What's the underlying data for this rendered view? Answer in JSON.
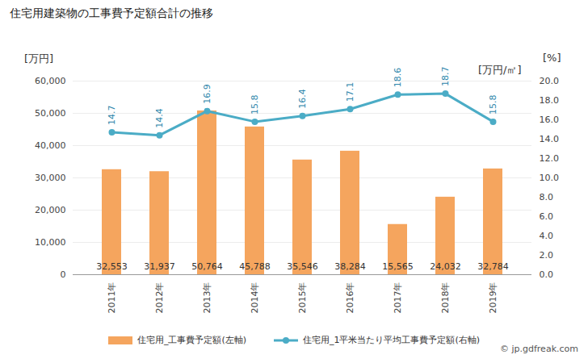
{
  "chart_data": {
    "type": "bar",
    "title": "住宅用建築物の工事費予定額合計の推移",
    "y_label": "[万円]",
    "y2_label": "[万円/㎡]",
    "annotations": [
      "[%]",
      "© jp.gdfreak.com"
    ],
    "categories": [
      "2011年",
      "2012年",
      "2013年",
      "2014年",
      "2015年",
      "2016年",
      "2017年",
      "2018年",
      "2019年"
    ],
    "series": [
      {
        "name": "住宅用_工事費予定額(左軸)",
        "type": "bar",
        "color": "#f5a55e",
        "values": [
          32553,
          31937,
          50764,
          45788,
          35546,
          38284,
          15565,
          24032,
          32784
        ],
        "value_labels": [
          "32,553",
          "31,937",
          "50,764",
          "45,788",
          "35,546",
          "38,284",
          "15,565",
          "24,032",
          "32,784"
        ],
        "data_labels": true
      },
      {
        "name": "住宅用_1平米当たり平均工事費予定額(右軸)",
        "type": "line",
        "axis": "y2",
        "color": "#4bacc6",
        "marker": "circle",
        "line_style": "solid",
        "values": [
          14.7,
          14.4,
          16.9,
          15.8,
          16.4,
          17.1,
          18.6,
          18.7,
          15.8
        ],
        "data_labels": true
      }
    ],
    "ylim": [
      0,
      60000
    ],
    "yticks": [
      0,
      {
        "value": 10000,
        "label": "10,000"
      },
      {
        "value": 20000,
        "label": "20,000"
      },
      {
        "value": 30000,
        "label": "30,000"
      },
      {
        "value": 40000,
        "label": "40,000"
      },
      {
        "value": 50000,
        "label": "50,000"
      },
      {
        "value": 60000,
        "label": "60,000"
      }
    ],
    "y2lim": [
      0,
      20
    ],
    "y2ticks": [
      {
        "value": 0,
        "label": "0.0"
      },
      {
        "value": 2,
        "label": "2.0"
      },
      {
        "value": 4,
        "label": "4.0"
      },
      {
        "value": 6,
        "label": "6.0"
      },
      {
        "value": 8,
        "label": "8.0"
      },
      {
        "value": 10,
        "label": "10.0"
      },
      {
        "value": 12,
        "label": "12.0"
      },
      {
        "value": 14,
        "label": "14.0"
      },
      {
        "value": 16,
        "label": "16.0"
      },
      {
        "value": 18,
        "label": "18.0"
      },
      {
        "value": 20,
        "label": "20.0"
      }
    ],
    "grid": true,
    "legend": "bottom"
  }
}
